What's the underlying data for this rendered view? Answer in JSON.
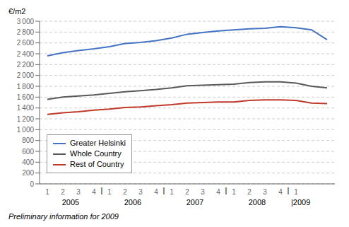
{
  "chart_data": {
    "type": "line",
    "y_label": "€/m2",
    "footnote": "Preliminary information for 2009",
    "categories": [
      "1",
      "2",
      "3",
      "4",
      "1",
      "2",
      "3",
      "4",
      "1",
      "2",
      "3",
      "4",
      "1",
      "2",
      "3",
      "4",
      "1",
      null,
      null
    ],
    "series": [
      {
        "name": "Greater Helsinki",
        "color": "#4472c4",
        "values": [
          2360,
          2420,
          2460,
          2490,
          2530,
          2590,
          2610,
          2640,
          2690,
          2760,
          2790,
          2820,
          2840,
          2860,
          2870,
          2900,
          2880,
          2840,
          2660
        ]
      },
      {
        "name": "Whole Country",
        "color": "#595959",
        "values": [
          1560,
          1600,
          1620,
          1640,
          1670,
          1700,
          1720,
          1740,
          1770,
          1810,
          1820,
          1830,
          1840,
          1870,
          1880,
          1880,
          1860,
          1800,
          1770
        ]
      },
      {
        "name": "Rest of Country",
        "color": "#c0392b",
        "values": [
          1280,
          1310,
          1330,
          1360,
          1380,
          1410,
          1420,
          1440,
          1460,
          1490,
          1500,
          1510,
          1510,
          1540,
          1550,
          1550,
          1540,
          1490,
          1480
        ]
      }
    ],
    "annotations": [
      {
        "text": "2005",
        "x": 1.5
      },
      {
        "text": "2006",
        "x": 5.5
      },
      {
        "text": "2007",
        "x": 9.5
      },
      {
        "text": "2008",
        "x": 13.5
      },
      {
        "text": "|2009",
        "x": 16.3
      }
    ],
    "separators": [
      {
        "text": "|",
        "x": 3.5
      },
      {
        "text": "|",
        "x": 7.5
      },
      {
        "text": "|",
        "x": 11.5
      },
      {
        "text": "|",
        "x": 15.5
      }
    ],
    "ylim": [
      0,
      3000
    ],
    "yticks": [
      0,
      200,
      400,
      600,
      800,
      {
        "value": 1000,
        "label": "1 000"
      },
      {
        "value": 1200,
        "label": "1 200"
      },
      {
        "value": 1400,
        "label": "1 400"
      },
      {
        "value": 1600,
        "label": "1 600"
      },
      {
        "value": 1800,
        "label": "1 800"
      },
      {
        "value": 2000,
        "label": "2 000"
      },
      {
        "value": 2200,
        "label": "2 200"
      },
      {
        "value": 2400,
        "label": "2 400"
      },
      {
        "value": 2600,
        "label": "2 600"
      },
      {
        "value": 2800,
        "label": "2 800"
      },
      {
        "value": 3000,
        "label": "3 000"
      }
    ],
    "grid": true,
    "legend": "lower left"
  }
}
